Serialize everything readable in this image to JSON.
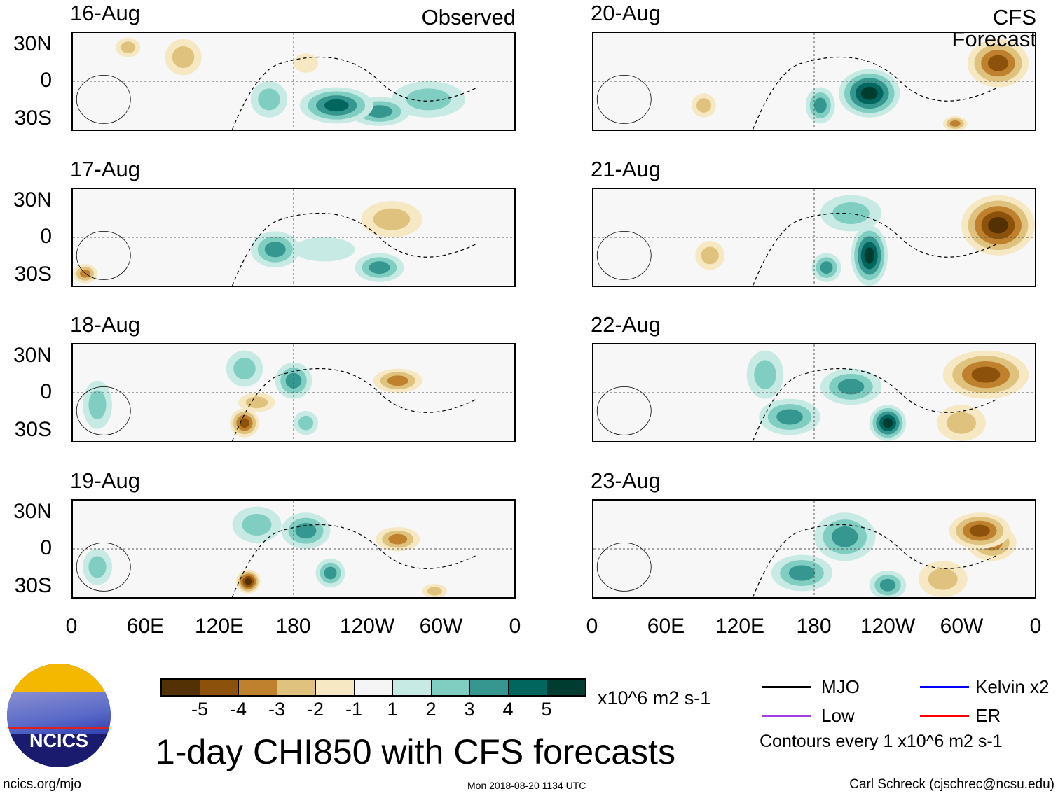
{
  "chart_data": {
    "type": "heatmap",
    "title": "1-day CHI850 with CFS forecasts",
    "units": "x10^6 m2 s-1",
    "lon_range": [
      0,
      360
    ],
    "lat_range": [
      -40,
      40
    ],
    "lat_ticks": [
      "30N",
      "0",
      "30S"
    ],
    "lon_ticks": [
      "0",
      "60E",
      "120E",
      "180",
      "120W",
      "60W",
      "0"
    ],
    "column_titles": [
      "Observed",
      "CFS Forecast"
    ],
    "colorbar": {
      "levels": [
        "-5",
        "-4",
        "-3",
        "-2",
        "-1",
        "1",
        "2",
        "3",
        "4",
        "5"
      ],
      "colors": [
        "#543005",
        "#8c510a",
        "#bf812d",
        "#dfc27d",
        "#f6e8c3",
        "#f5f5f5",
        "#c7eae5",
        "#80cdc1",
        "#35978f",
        "#01665e",
        "#003c30"
      ]
    },
    "panels": [
      {
        "date": "16-Aug",
        "column": 0,
        "row": 0,
        "features": [
          [
            215,
            -20,
            30,
            15,
            4
          ],
          [
            250,
            -25,
            25,
            12,
            3
          ],
          [
            160,
            -15,
            15,
            15,
            2
          ],
          [
            290,
            -15,
            30,
            15,
            2
          ],
          [
            90,
            20,
            15,
            15,
            -2
          ],
          [
            45,
            28,
            10,
            8,
            -2
          ],
          [
            190,
            15,
            10,
            8,
            -1
          ]
        ]
      },
      {
        "date": "17-Aug",
        "column": 0,
        "row": 1,
        "features": [
          [
            165,
            -10,
            20,
            15,
            3
          ],
          [
            250,
            -25,
            20,
            12,
            3
          ],
          [
            205,
            -10,
            25,
            10,
            1
          ],
          [
            10,
            -30,
            10,
            8,
            -3
          ],
          [
            260,
            15,
            25,
            15,
            -2
          ]
        ]
      },
      {
        "date": "18-Aug",
        "column": 0,
        "row": 2,
        "features": [
          [
            180,
            10,
            15,
            15,
            3
          ],
          [
            140,
            20,
            15,
            15,
            2
          ],
          [
            190,
            -25,
            10,
            10,
            2
          ],
          [
            20,
            -10,
            12,
            20,
            2
          ],
          [
            140,
            -25,
            12,
            12,
            -4
          ],
          [
            265,
            10,
            20,
            10,
            -3
          ],
          [
            150,
            -8,
            15,
            8,
            -2
          ]
        ]
      },
      {
        "date": "19-Aug",
        "column": 0,
        "row": 3,
        "features": [
          [
            190,
            15,
            20,
            15,
            3
          ],
          [
            210,
            -20,
            12,
            12,
            3
          ],
          [
            150,
            20,
            20,
            15,
            2
          ],
          [
            20,
            -15,
            12,
            15,
            2
          ],
          [
            143,
            -27,
            10,
            10,
            -5
          ],
          [
            265,
            8,
            18,
            10,
            -3
          ],
          [
            295,
            -35,
            10,
            6,
            -2
          ]
        ]
      },
      {
        "date": "20-Aug",
        "column": 1,
        "row": 0,
        "features": [
          [
            225,
            -10,
            25,
            20,
            5
          ],
          [
            185,
            -20,
            12,
            15,
            3
          ],
          [
            330,
            15,
            25,
            20,
            -4
          ],
          [
            90,
            -20,
            10,
            10,
            -2
          ],
          [
            295,
            -35,
            10,
            6,
            -3
          ]
        ]
      },
      {
        "date": "21-Aug",
        "column": 1,
        "row": 1,
        "features": [
          [
            225,
            -15,
            15,
            25,
            5
          ],
          [
            190,
            -25,
            12,
            12,
            3
          ],
          [
            210,
            20,
            25,
            15,
            2
          ],
          [
            330,
            10,
            30,
            25,
            -5
          ],
          [
            95,
            -15,
            12,
            12,
            -2
          ]
        ]
      },
      {
        "date": "22-Aug",
        "column": 1,
        "row": 2,
        "features": [
          [
            240,
            -25,
            15,
            15,
            5
          ],
          [
            210,
            5,
            25,
            15,
            3
          ],
          [
            160,
            -20,
            25,
            15,
            3
          ],
          [
            140,
            15,
            15,
            20,
            2
          ],
          [
            320,
            15,
            35,
            20,
            -4
          ],
          [
            300,
            -25,
            20,
            15,
            -2
          ]
        ]
      },
      {
        "date": "23-Aug",
        "column": 1,
        "row": 3,
        "features": [
          [
            205,
            10,
            25,
            20,
            3
          ],
          [
            170,
            -20,
            25,
            15,
            3
          ],
          [
            240,
            -30,
            15,
            12,
            3
          ],
          [
            315,
            15,
            25,
            15,
            -4
          ],
          [
            285,
            -25,
            20,
            15,
            -2
          ],
          [
            325,
            5,
            20,
            15,
            -3
          ]
        ]
      }
    ]
  },
  "legend": {
    "units": "x10^6 m2 s-1",
    "mjo": "MJO",
    "kelvin": "Kelvin x2",
    "low": "Low",
    "er": "ER",
    "contours": "Contours every 1 x10^6 m2 s-1",
    "colors": {
      "mjo": "#000000",
      "kelvin": "#0000ff",
      "low": "#a040e0",
      "er": "#ff0000"
    }
  },
  "logo": {
    "text": "NCICS"
  },
  "footer": {
    "url": "ncics.org/mjo",
    "timestamp": "Mon 2018-08-20 1134 UTC",
    "author": "Carl Schreck (cjschrec@ncsu.edu)"
  }
}
